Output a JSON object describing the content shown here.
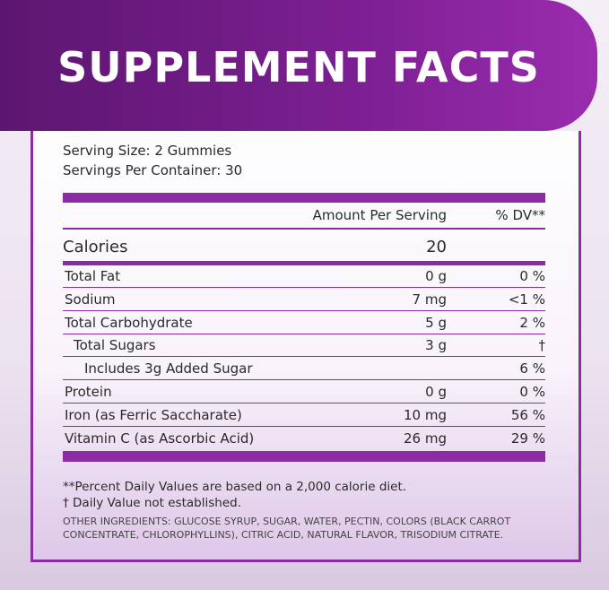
{
  "header": {
    "title": "SUPPLEMENT FACTS"
  },
  "serving": {
    "size": "Serving Size: 2 Gummies",
    "per_container": "Servings Per Container: 30"
  },
  "table": {
    "columns": [
      "Amount Per Serving",
      "% DV**"
    ],
    "calories": {
      "label": "Calories",
      "amount": "20"
    },
    "rows": [
      {
        "name": "Total Fat",
        "amount": "0 g",
        "dv": "0 %",
        "indent": 0
      },
      {
        "name": "Sodium",
        "amount": "7 mg",
        "dv": "<1 %",
        "indent": 0
      },
      {
        "name": "Total Carbohydrate",
        "amount": "5 g",
        "dv": "2 %",
        "indent": 0
      },
      {
        "name": "Total Sugars",
        "amount": "3 g",
        "dv": "†",
        "indent": 1
      },
      {
        "name": "Includes 3g Added Sugar",
        "amount": null,
        "dv": "6 %",
        "indent": 2
      },
      {
        "name": "Protein",
        "amount": "0 g",
        "dv": "0 %",
        "indent": 0
      },
      {
        "name": "Iron (as Ferric Saccharate)",
        "amount": "10 mg",
        "dv": "56 %",
        "indent": 0
      },
      {
        "name": "Vitamin C (as Ascorbic Acid)",
        "amount": "26 mg",
        "dv": "29 %",
        "indent": 0
      }
    ]
  },
  "footnotes": [
    "**Percent Daily Values are based on a 2,000 calorie diet.",
    "† Daily Value not established."
  ],
  "ingredients": "OTHER INGREDIENTS: GLUCOSE SYRUP, SUGAR, WATER, PECTIN, COLORS (BLACK CARROT CONCENTRATE, CHLOROPHYLLINS), CITRIC ACID, NATURAL FLAVOR, TRISODIUM CITRATE."
}
